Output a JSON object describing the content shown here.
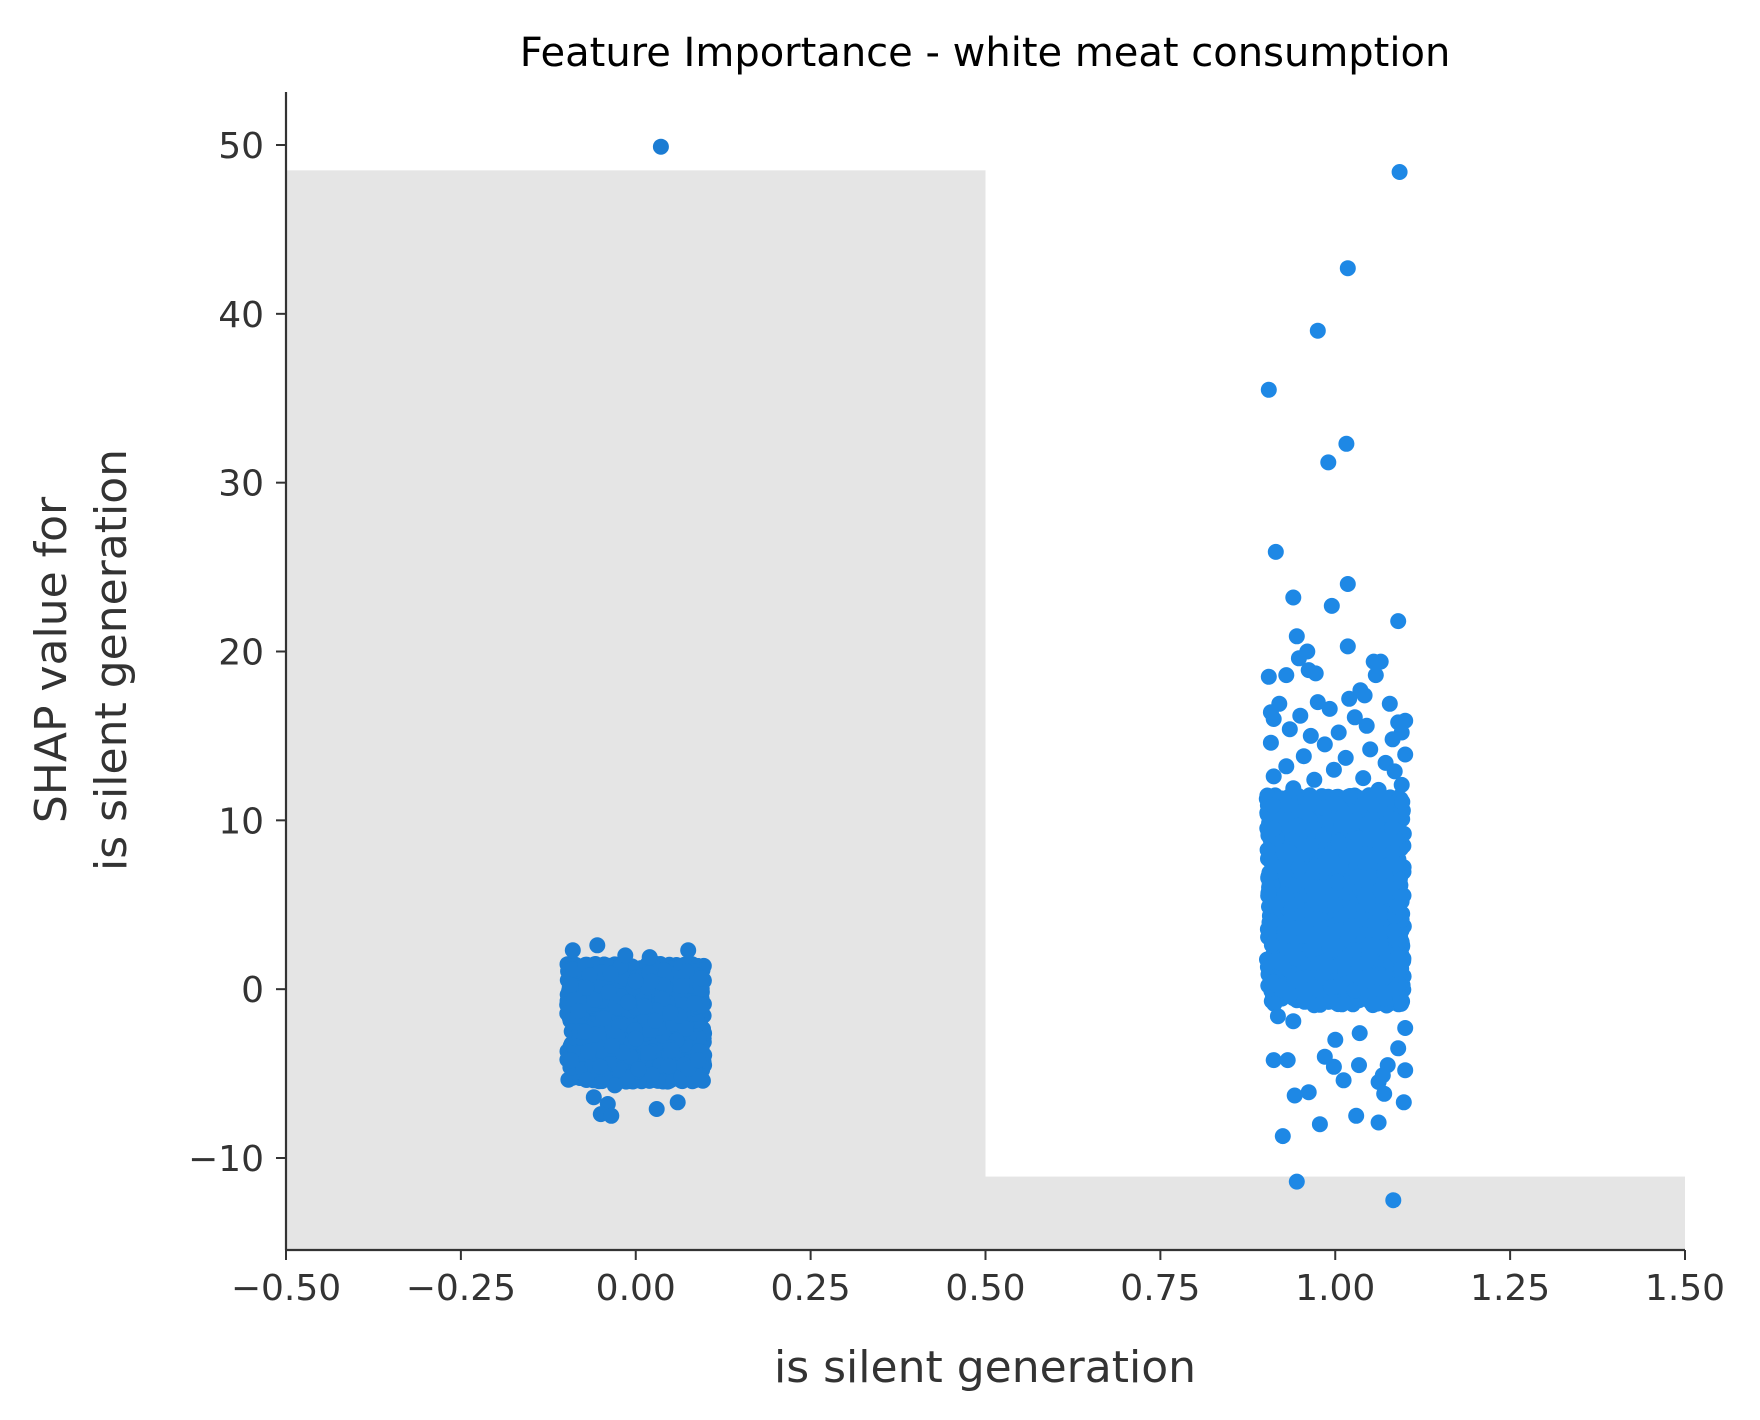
{
  "chart_data": {
    "type": "scatter",
    "title": "Feature Importance - white meat consumption",
    "xlabel": "is silent generation",
    "ylabel_lines": [
      "SHAP value for",
      "is silent generation"
    ],
    "xlim": [
      -0.5,
      1.5
    ],
    "ylim": [
      -15.5,
      53
    ],
    "xticks": [
      -0.5,
      -0.25,
      0.0,
      0.25,
      0.5,
      0.75,
      1.0,
      1.25,
      1.5
    ],
    "xtick_labels": [
      "−0.50",
      "−0.25",
      "0.00",
      "0.25",
      "0.50",
      "0.75",
      "1.00",
      "1.25",
      "1.50"
    ],
    "yticks": [
      -10,
      0,
      10,
      20,
      30,
      40,
      50
    ],
    "ytick_labels": [
      "−10",
      "0",
      "10",
      "20",
      "30",
      "40",
      "50"
    ],
    "grid": false,
    "point_color": "#1e88e5",
    "background_bars": [
      {
        "x_from": -0.5,
        "x_to": 0.5,
        "y_from": -15.5,
        "y_to": 48.5,
        "color": "#e5e5e5"
      },
      {
        "x_from": 0.5,
        "x_to": 1.5,
        "y_from": -15.5,
        "y_to": -11.1,
        "color": "#e5e5e5"
      }
    ],
    "clusters": [
      {
        "x_center": 0.0,
        "x_jitter": 0.1,
        "y_min": -5.5,
        "y_max": 1.5
      },
      {
        "x_center": 1.0,
        "x_jitter": 0.1,
        "y_min": -1.0,
        "y_max": 11.5
      }
    ],
    "series": [
      {
        "values": [
          {
            "x": -0.03,
            "y": -5.7
          },
          {
            "x": -0.04,
            "y": -6.8
          },
          {
            "x": -0.05,
            "y": -7.4
          },
          {
            "x": -0.035,
            "y": -7.5
          },
          {
            "x": 0.03,
            "y": -7.1
          },
          {
            "x": 0.06,
            "y": -6.7
          },
          {
            "x": -0.06,
            "y": -6.4
          },
          {
            "x": -0.055,
            "y": 2.6
          },
          {
            "x": -0.09,
            "y": 2.3
          },
          {
            "x": 0.075,
            "y": 2.3
          },
          {
            "x": 0.02,
            "y": 1.9
          },
          {
            "x": -0.015,
            "y": 2.0
          },
          {
            "x": 0.036,
            "y": 49.9
          },
          {
            "x": 1.092,
            "y": 48.4
          },
          {
            "x": 1.018,
            "y": 42.7
          },
          {
            "x": 0.975,
            "y": 39.0
          },
          {
            "x": 0.905,
            "y": 35.5
          },
          {
            "x": 1.016,
            "y": 32.3
          },
          {
            "x": 0.99,
            "y": 31.2
          },
          {
            "x": 0.915,
            "y": 25.9
          },
          {
            "x": 1.018,
            "y": 24.0
          },
          {
            "x": 0.94,
            "y": 23.2
          },
          {
            "x": 0.995,
            "y": 22.7
          },
          {
            "x": 1.09,
            "y": 21.8
          },
          {
            "x": 0.945,
            "y": 20.9
          },
          {
            "x": 1.018,
            "y": 20.3
          },
          {
            "x": 0.96,
            "y": 20.0
          },
          {
            "x": 0.948,
            "y": 19.6
          },
          {
            "x": 1.055,
            "y": 19.4
          },
          {
            "x": 1.065,
            "y": 19.4
          },
          {
            "x": 0.962,
            "y": 18.9
          },
          {
            "x": 0.972,
            "y": 18.7
          },
          {
            "x": 0.905,
            "y": 18.5
          },
          {
            "x": 0.93,
            "y": 18.6
          },
          {
            "x": 1.058,
            "y": 18.6
          },
          {
            "x": 1.036,
            "y": 17.7
          },
          {
            "x": 1.042,
            "y": 17.4
          },
          {
            "x": 1.02,
            "y": 17.2
          },
          {
            "x": 0.975,
            "y": 17.0
          },
          {
            "x": 1.078,
            "y": 16.9
          },
          {
            "x": 0.92,
            "y": 16.9
          },
          {
            "x": 0.992,
            "y": 16.6
          },
          {
            "x": 0.908,
            "y": 16.4
          },
          {
            "x": 0.95,
            "y": 16.2
          },
          {
            "x": 1.028,
            "y": 16.1
          },
          {
            "x": 0.912,
            "y": 16.0
          },
          {
            "x": 1.1,
            "y": 15.9
          },
          {
            "x": 1.09,
            "y": 15.8
          },
          {
            "x": 1.045,
            "y": 15.6
          },
          {
            "x": 0.935,
            "y": 15.4
          },
          {
            "x": 1.005,
            "y": 15.2
          },
          {
            "x": 1.095,
            "y": 15.2
          },
          {
            "x": 0.965,
            "y": 15.0
          },
          {
            "x": 1.082,
            "y": 14.8
          },
          {
            "x": 0.908,
            "y": 14.6
          },
          {
            "x": 0.985,
            "y": 14.5
          },
          {
            "x": 1.05,
            "y": 14.2
          },
          {
            "x": 1.1,
            "y": 13.9
          },
          {
            "x": 0.955,
            "y": 13.8
          },
          {
            "x": 1.015,
            "y": 13.7
          },
          {
            "x": 1.072,
            "y": 13.4
          },
          {
            "x": 0.93,
            "y": 13.2
          },
          {
            "x": 0.998,
            "y": 13.0
          },
          {
            "x": 1.085,
            "y": 12.9
          },
          {
            "x": 0.912,
            "y": 12.6
          },
          {
            "x": 1.04,
            "y": 12.5
          },
          {
            "x": 0.97,
            "y": 12.4
          },
          {
            "x": 1.095,
            "y": 12.1
          },
          {
            "x": 0.94,
            "y": 11.9
          },
          {
            "x": 1.062,
            "y": 11.8
          },
          {
            "x": 0.918,
            "y": -1.6
          },
          {
            "x": 0.94,
            "y": -1.9
          },
          {
            "x": 1.1,
            "y": -2.3
          },
          {
            "x": 1.035,
            "y": -2.6
          },
          {
            "x": 1.0,
            "y": -3.0
          },
          {
            "x": 1.09,
            "y": -3.5
          },
          {
            "x": 0.985,
            "y": -4.0
          },
          {
            "x": 0.912,
            "y": -4.2
          },
          {
            "x": 0.932,
            "y": -4.2
          },
          {
            "x": 1.034,
            "y": -4.5
          },
          {
            "x": 0.998,
            "y": -4.6
          },
          {
            "x": 1.075,
            "y": -4.5
          },
          {
            "x": 1.1,
            "y": -4.8
          },
          {
            "x": 1.068,
            "y": -5.1
          },
          {
            "x": 1.012,
            "y": -5.4
          },
          {
            "x": 1.062,
            "y": -5.5
          },
          {
            "x": 0.962,
            "y": -6.1
          },
          {
            "x": 0.942,
            "y": -6.3
          },
          {
            "x": 1.07,
            "y": -6.2
          },
          {
            "x": 1.098,
            "y": -6.7
          },
          {
            "x": 1.03,
            "y": -7.5
          },
          {
            "x": 0.978,
            "y": -8.0
          },
          {
            "x": 1.062,
            "y": -7.9
          },
          {
            "x": 0.925,
            "y": -8.7
          },
          {
            "x": 0.945,
            "y": -11.4
          },
          {
            "x": 1.083,
            "y": -12.5
          }
        ]
      }
    ]
  }
}
